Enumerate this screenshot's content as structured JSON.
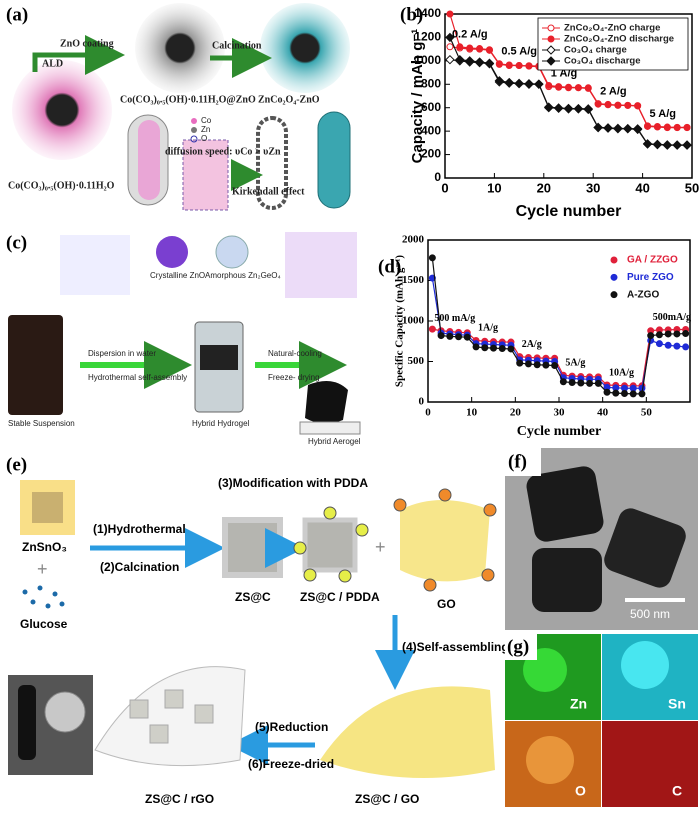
{
  "panels": {
    "a": {
      "label": "(a)",
      "zno_coating": "ZnO coating",
      "ald": "ALD",
      "calcination": "Calcination",
      "coated": "Co(CO₃)₀.₅(OH)·0.11H₂O@ZnO",
      "product": "ZnCo₂O₄-ZnO",
      "precursor": "Co(CO₃)₀.₅(OH)·0.11H₂O",
      "legend": [
        "Co",
        "Zn",
        "O"
      ],
      "diffusion": "diffusion speed: υCo > υZn",
      "kirkendall": "Kirkendall effect"
    },
    "c": {
      "label": "(c)",
      "crystalline": "Crystalline ZnO",
      "amorphous": "Amorphous Zn₂GeO₄",
      "suspension": "Stable Suspension",
      "dispersion": "Dispersion in water",
      "hydrothermal": "Hydrothermal self-assembly",
      "hydrogel": "Hybrid Hydrogel",
      "cooling": "Natural-cooling",
      "freeze": "Freeze- drying",
      "aerogel": "Hybrid Aerogel"
    },
    "e": {
      "label": "(e)",
      "znsno3": "ZnSnO₃",
      "step1": "(1)Hydrothermal",
      "step2": "(2)Calcination",
      "glucose": "Glucose",
      "zsc": "ZS@C",
      "step3": "(3)Modification with PDDA",
      "zsc_pdda": "ZS@C / PDDA",
      "go": "GO",
      "step4": "(4)Self-assembling",
      "zsc_go": "ZS@C / GO",
      "step5": "(5)Reduction",
      "step6": "(6)Freeze-dried",
      "zsc_rgo": "ZS@C / rGO"
    },
    "f": {
      "label": "(f)",
      "scale": "500 nm"
    },
    "g": {
      "label": "(g)",
      "maps": [
        "Zn",
        "Sn",
        "O",
        "C"
      ]
    }
  },
  "chart_data": [
    {
      "type": "line",
      "label": "(b)",
      "y_label": "Capacity / mAh g⁻¹",
      "x_label": "Cycle number",
      "x": [
        1,
        3,
        5,
        7,
        9,
        11,
        13,
        15,
        17,
        19,
        21,
        23,
        25,
        27,
        29,
        31,
        33,
        35,
        37,
        39,
        41,
        43,
        45,
        47,
        49
      ],
      "xlim": [
        0,
        50
      ],
      "xticks": [
        0,
        10,
        20,
        30,
        40,
        50
      ],
      "ylim": [
        0,
        1400
      ],
      "yticks": [
        0,
        200,
        400,
        600,
        800,
        1000,
        1200,
        1400
      ],
      "annotations": [
        "0.2 A/g",
        "0.5 A/g",
        "1 A/g",
        "2 A/g",
        "5 A/g"
      ],
      "series": [
        {
          "name": "ZnCo₂O₄-ZnO charge",
          "color": "#e8202a",
          "marker": "circle-open",
          "values": [
            1120,
            1110,
            1100,
            1100,
            1090,
            970,
            960,
            960,
            955,
            950,
            780,
            775,
            770,
            770,
            765,
            630,
            625,
            620,
            620,
            615,
            440,
            435,
            430,
            430,
            430
          ]
        },
        {
          "name": "ZnCo₂O₄-ZnO discharge",
          "color": "#e8202a",
          "marker": "circle",
          "values": [
            1400,
            1120,
            1110,
            1105,
            1095,
            975,
            965,
            960,
            958,
            955,
            790,
            780,
            775,
            772,
            770,
            635,
            628,
            622,
            620,
            618,
            445,
            440,
            435,
            432,
            432
          ]
        },
        {
          "name": "Co₃O₄ charge",
          "color": "#111111",
          "marker": "diamond-open",
          "values": [
            1010,
            1000,
            990,
            985,
            975,
            820,
            810,
            805,
            800,
            800,
            600,
            595,
            590,
            590,
            585,
            430,
            425,
            420,
            420,
            415,
            290,
            285,
            280,
            280,
            280
          ]
        },
        {
          "name": "Co₃O₄ discharge",
          "color": "#111111",
          "marker": "diamond",
          "values": [
            1200,
            1010,
            1000,
            990,
            980,
            830,
            815,
            808,
            805,
            802,
            605,
            598,
            594,
            592,
            590,
            432,
            428,
            424,
            422,
            420,
            292,
            287,
            283,
            282,
            282
          ]
        }
      ]
    },
    {
      "type": "line",
      "label": "(d)",
      "y_label": "Specific Capacity (mAh g⁻¹)",
      "x_label": "Cycle number",
      "x": [
        1,
        3,
        5,
        7,
        9,
        11,
        13,
        15,
        17,
        19,
        21,
        23,
        25,
        27,
        29,
        31,
        33,
        35,
        37,
        39,
        41,
        43,
        45,
        47,
        49,
        51,
        53,
        55,
        57,
        59
      ],
      "xlim": [
        0,
        60
      ],
      "xticks": [
        0,
        10,
        20,
        30,
        40,
        50
      ],
      "ylim": [
        0,
        2000
      ],
      "yticks": [
        0,
        500,
        1000,
        1500,
        2000
      ],
      "annotations": [
        "500 mA/g",
        "1A/g",
        "2A/g",
        "5A/g",
        "10A/g",
        "500mA/g"
      ],
      "series": [
        {
          "name": "GA / ZZGO",
          "color": "#e0203a",
          "marker": "circle",
          "values": [
            900,
            880,
            870,
            860,
            855,
            760,
            750,
            745,
            740,
            740,
            560,
            550,
            545,
            540,
            540,
            330,
            320,
            315,
            310,
            310,
            210,
            205,
            200,
            200,
            200,
            880,
            890,
            890,
            895,
            895
          ]
        },
        {
          "name": "Pure ZGO",
          "color": "#1f2bd6",
          "marker": "circle",
          "values": [
            1530,
            850,
            840,
            830,
            825,
            720,
            715,
            710,
            705,
            700,
            520,
            515,
            510,
            505,
            500,
            300,
            290,
            285,
            280,
            280,
            180,
            175,
            170,
            170,
            170,
            760,
            720,
            700,
            690,
            680
          ]
        },
        {
          "name": "A-ZGO",
          "color": "#111111",
          "marker": "circle",
          "values": [
            1780,
            820,
            810,
            805,
            800,
            680,
            670,
            665,
            660,
            655,
            480,
            470,
            460,
            455,
            450,
            250,
            240,
            235,
            230,
            230,
            120,
            110,
            105,
            100,
            100,
            820,
            830,
            840,
            840,
            845
          ]
        }
      ]
    }
  ]
}
